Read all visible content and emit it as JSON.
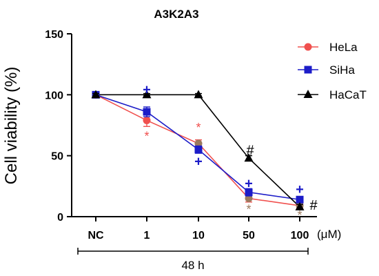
{
  "chart_data": {
    "type": "line",
    "title": "A3K2A3",
    "ylabel": "Cell viability (%)",
    "xlabel": "",
    "x_unit": "(μM)",
    "categories": [
      "NC",
      "1",
      "10",
      "50",
      "100"
    ],
    "ylim": [
      0,
      150
    ],
    "yticks": [
      "0",
      "50",
      "100",
      "150"
    ],
    "grid": false,
    "legend_position": "top-right",
    "time_label": "48 h",
    "series": [
      {
        "name": "HeLa",
        "values": [
          100,
          79,
          60,
          15,
          9
        ],
        "errors": [
          2,
          5,
          3,
          3,
          2
        ],
        "color": "#f0504e",
        "marker": "circle"
      },
      {
        "name": "SiHa",
        "values": [
          100,
          86,
          55,
          20,
          14
        ],
        "errors": [
          2,
          4,
          3,
          3,
          2
        ],
        "color": "#1c1cc8",
        "marker": "square"
      },
      {
        "name": "HaCaT",
        "values": [
          100,
          100,
          100,
          48,
          8
        ],
        "errors": [
          1,
          1,
          1,
          2,
          2
        ],
        "color": "#000000",
        "marker": "triangle"
      }
    ],
    "overlap_color": "#9b7a5e",
    "annotations": [
      {
        "text": "*",
        "x": "1",
        "y": 66,
        "color": "#f0504e"
      },
      {
        "text": "+",
        "x": "1",
        "y": 104,
        "color": "#1c1cc8"
      },
      {
        "text": "*",
        "x": "10",
        "y": 73,
        "color": "#f0504e"
      },
      {
        "text": "+",
        "x": "10",
        "y": 45,
        "color": "#1c1cc8"
      },
      {
        "text": "#",
        "x": "50",
        "y": 54,
        "color": "#000000"
      },
      {
        "text": "+",
        "x": "50",
        "y": 27,
        "color": "#1c1cc8"
      },
      {
        "text": "*",
        "x": "50",
        "y": 6,
        "color": "#9b7a5e"
      },
      {
        "text": "+",
        "x": "100",
        "y": 22,
        "color": "#1c1cc8"
      },
      {
        "text": "#",
        "x": "100",
        "y": 9,
        "color": "#000000"
      },
      {
        "text": "*",
        "x": "100",
        "y": 1,
        "color": "#9b7a5e"
      }
    ]
  }
}
